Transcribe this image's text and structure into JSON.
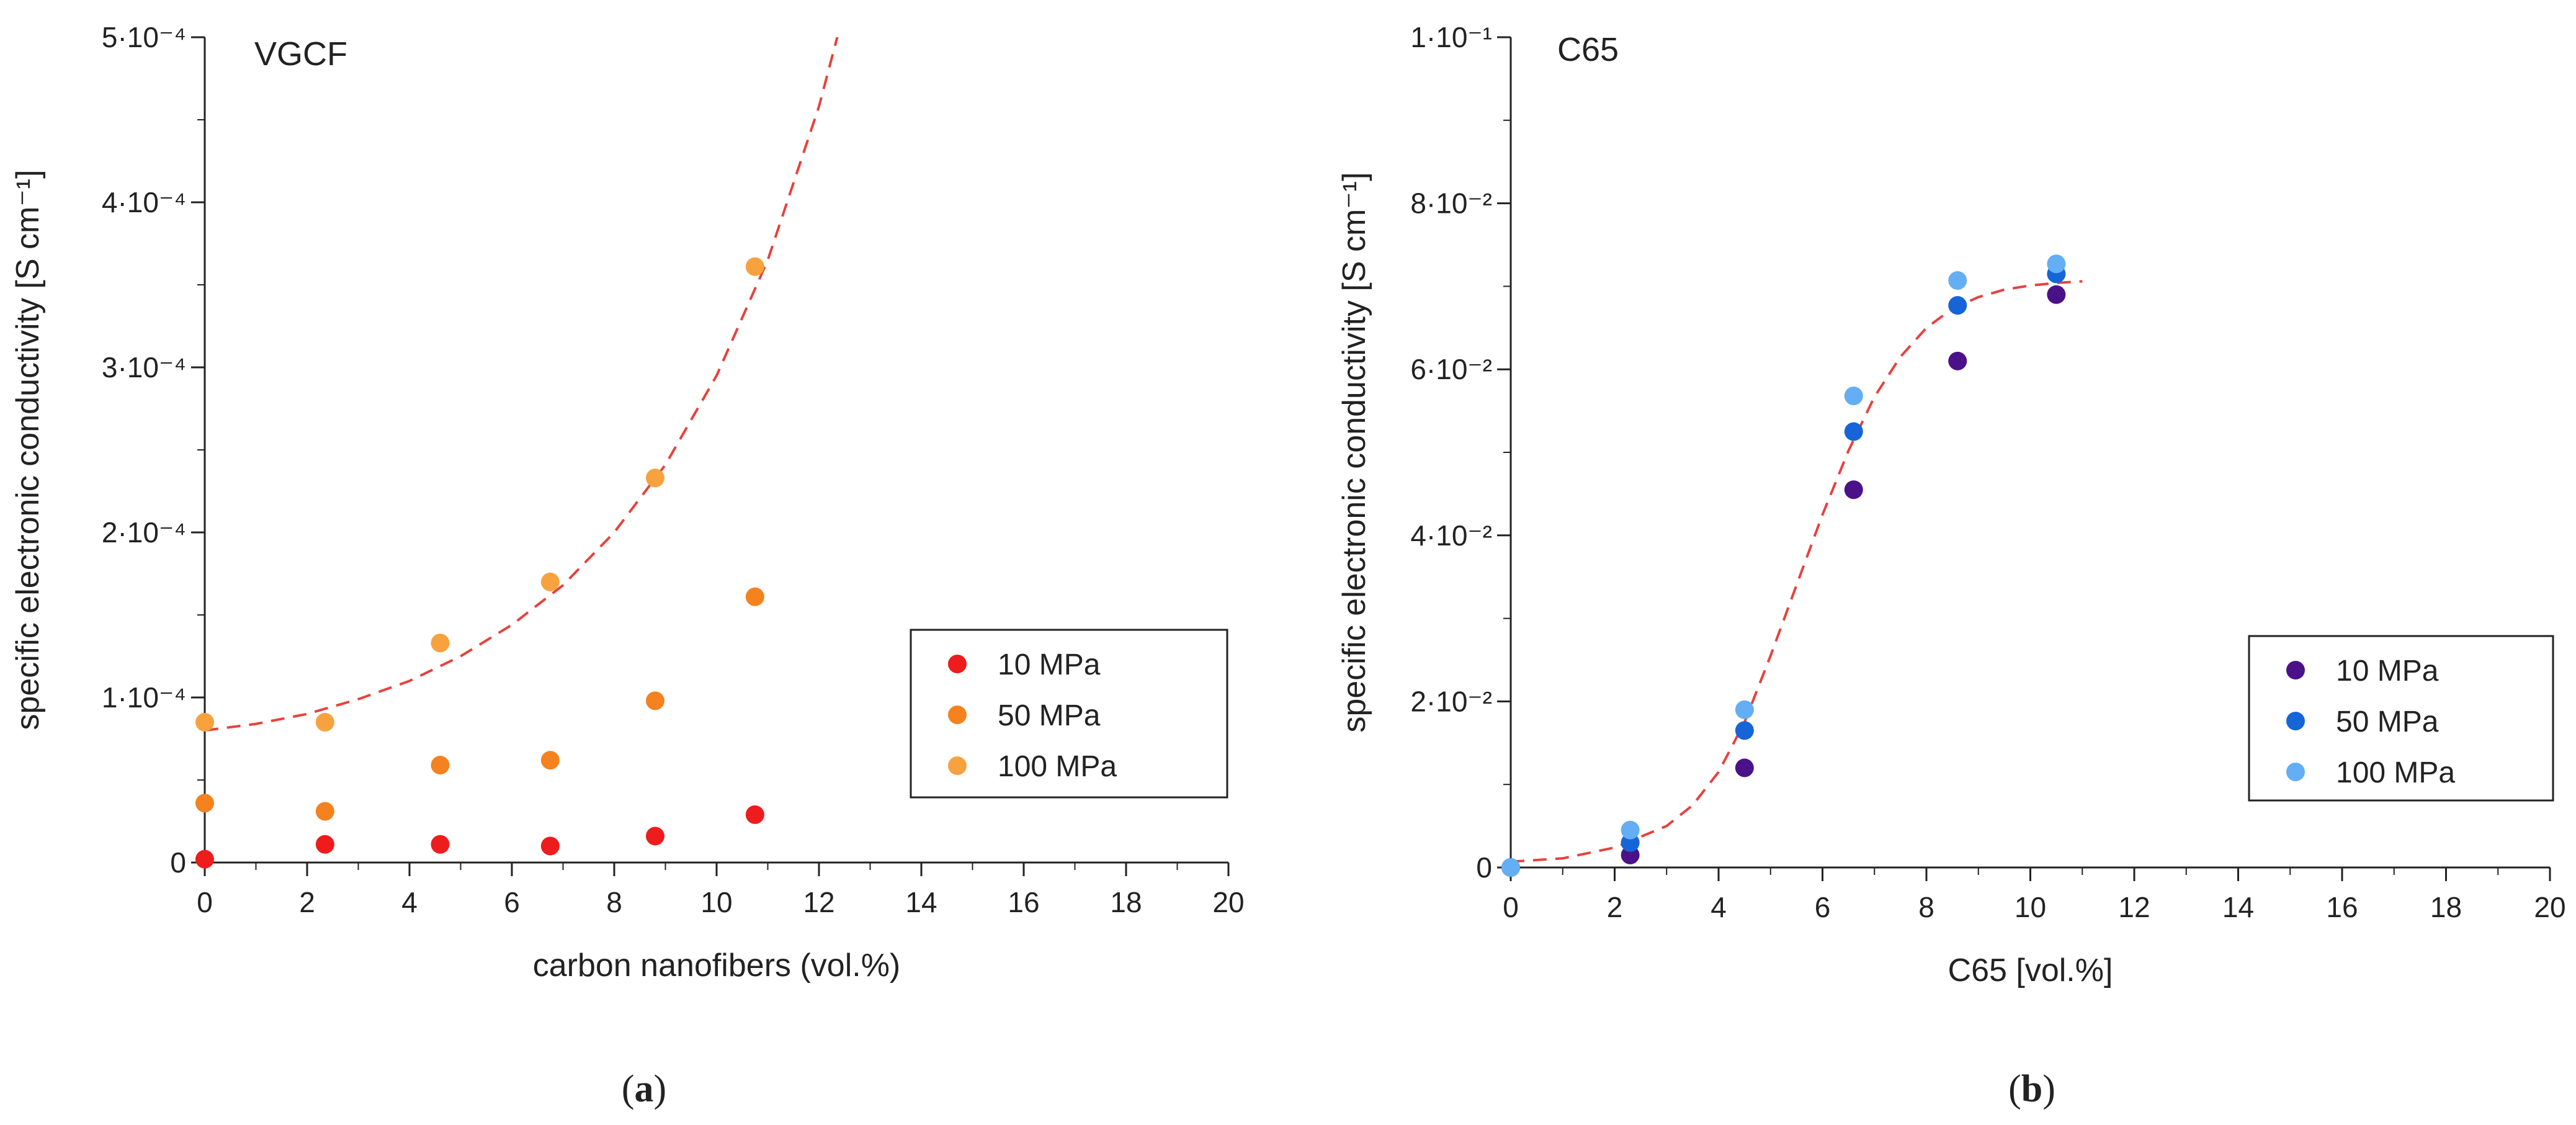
{
  "chart_data": [
    {
      "type": "scatter",
      "title": "VGCF",
      "caption_letter": "a",
      "xlabel": "carbon nanofibers (vol.%)",
      "ylabel": "specific electronic conductivity [S cm⁻¹]",
      "xlim": [
        0,
        20
      ],
      "ylim": [
        0,
        0.0005
      ],
      "x_ticks": [
        0,
        2,
        4,
        6,
        8,
        10,
        12,
        14,
        16,
        18,
        20
      ],
      "y_ticks": [
        {
          "value": 0,
          "label": "0"
        },
        {
          "value": 0.0001,
          "label": "1·10⁻⁴"
        },
        {
          "value": 0.0002,
          "label": "2·10⁻⁴"
        },
        {
          "value": 0.0003,
          "label": "3·10⁻⁴"
        },
        {
          "value": 0.0004,
          "label": "4·10⁻⁴"
        },
        {
          "value": 0.0005,
          "label": "5·10⁻⁴"
        }
      ],
      "legend_position": "middle-right",
      "series": [
        {
          "name": "10 MPa",
          "color": "#ee1c1c",
          "x": [
            0.0,
            2.35,
            4.6,
            6.75,
            8.8,
            10.75
          ],
          "y": [
            2e-06,
            1.1e-05,
            1.1e-05,
            1e-05,
            1.6e-05,
            2.9e-05
          ]
        },
        {
          "name": "50 MPa",
          "color": "#f4821e",
          "x": [
            0.0,
            2.35,
            4.6,
            6.75,
            8.8,
            10.75
          ],
          "y": [
            3.6e-05,
            3.1e-05,
            5.9e-05,
            6.2e-05,
            9.8e-05,
            0.000161
          ]
        },
        {
          "name": "100 MPa",
          "color": "#f7a23e",
          "x": [
            0.0,
            2.35,
            4.6,
            6.75,
            8.8,
            10.75
          ],
          "y": [
            8.5e-05,
            8.5e-05,
            0.000133,
            0.00017,
            0.000233,
            0.000361
          ]
        }
      ],
      "fit": {
        "style": "dashed",
        "color": "#e8413c",
        "x": [
          0,
          1,
          2,
          3,
          4,
          5,
          6,
          7,
          8,
          9,
          10,
          11,
          12,
          12.4
        ],
        "y": [
          8e-05,
          8.4e-05,
          9e-05,
          9.9e-05,
          0.00011,
          0.000125,
          0.000144,
          0.000168,
          0.0002,
          0.000241,
          0.000295,
          0.000365,
          0.000458,
          0.000505
        ]
      }
    },
    {
      "type": "scatter",
      "title": "C65",
      "caption_letter": "b",
      "xlabel": "C65 [vol.%]",
      "ylabel": "specific electronic conductivity [S cm⁻¹]",
      "xlim": [
        0,
        20
      ],
      "ylim": [
        0,
        0.1
      ],
      "x_ticks": [
        0,
        2,
        4,
        6,
        8,
        10,
        12,
        14,
        16,
        18,
        20
      ],
      "y_ticks": [
        {
          "value": 0,
          "label": "0"
        },
        {
          "value": 0.02,
          "label": "2·10⁻²"
        },
        {
          "value": 0.04,
          "label": "4·10⁻²"
        },
        {
          "value": 0.06,
          "label": "6·10⁻²"
        },
        {
          "value": 0.08,
          "label": "8·10⁻²"
        },
        {
          "value": 0.1,
          "label": "1·10⁻¹"
        }
      ],
      "legend_position": "bottom-right",
      "series": [
        {
          "name": "10 MPa",
          "color": "#4b1189",
          "x": [
            0.0,
            2.3,
            4.5,
            6.6,
            8.6,
            10.5
          ],
          "y": [
            0.0,
            0.0015,
            0.012,
            0.0455,
            0.061,
            0.069
          ]
        },
        {
          "name": "50 MPa",
          "color": "#1565d8",
          "x": [
            0.0,
            2.3,
            4.5,
            6.6,
            8.6,
            10.5
          ],
          "y": [
            0.0,
            0.003,
            0.0165,
            0.0525,
            0.0677,
            0.0715
          ]
        },
        {
          "name": "100 MPa",
          "color": "#63aef4",
          "x": [
            0.0,
            2.3,
            4.5,
            6.6,
            8.6,
            10.5
          ],
          "y": [
            0.0,
            0.0045,
            0.019,
            0.0568,
            0.0707,
            0.0727
          ]
        }
      ],
      "fit": {
        "style": "dashed",
        "color": "#e8413c",
        "x": [
          0,
          1,
          2,
          3,
          3.5,
          4,
          4.5,
          5,
          5.5,
          6,
          6.5,
          7,
          7.5,
          8,
          8.5,
          9,
          9.5,
          10,
          10.5,
          11
        ],
        "y": [
          0.0007,
          0.0011,
          0.0024,
          0.005,
          0.0075,
          0.0115,
          0.0175,
          0.0255,
          0.034,
          0.0425,
          0.0502,
          0.0567,
          0.0615,
          0.065,
          0.0673,
          0.0687,
          0.0696,
          0.0701,
          0.0704,
          0.0706
        ]
      }
    }
  ]
}
